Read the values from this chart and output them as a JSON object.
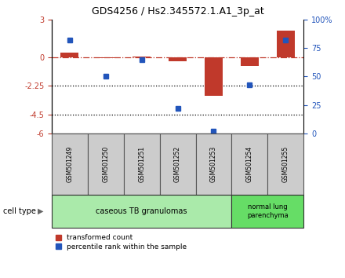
{
  "title": "GDS4256 / Hs2.345572.1.A1_3p_at",
  "samples": [
    "GSM501249",
    "GSM501250",
    "GSM501251",
    "GSM501252",
    "GSM501253",
    "GSM501254",
    "GSM501255"
  ],
  "red_values": [
    0.4,
    -0.05,
    0.08,
    -0.3,
    -3.0,
    -0.7,
    2.1
  ],
  "blue_values": [
    82,
    50,
    65,
    22,
    2,
    43,
    82
  ],
  "ylim_left": [
    -6,
    3
  ],
  "ylim_right": [
    0,
    100
  ],
  "yticks_left": [
    3,
    0,
    -2.25,
    -4.5,
    -6
  ],
  "yticks_right": [
    100,
    75,
    50,
    25,
    0
  ],
  "ytick_labels_left": [
    "3",
    "0",
    "-2.25",
    "-4.5",
    "-6"
  ],
  "ytick_labels_right": [
    "100%",
    "75",
    "50",
    "25",
    "0"
  ],
  "hlines_dotted": [
    -2.25,
    -4.5
  ],
  "hline_dashdot": 0,
  "group1_label": "caseous TB granulomas",
  "group2_label": "normal lung\nparenchyma",
  "group1_samples": [
    0,
    1,
    2,
    3,
    4
  ],
  "group2_samples": [
    5,
    6
  ],
  "cell_type_label": "cell type",
  "legend_red": "transformed count",
  "legend_blue": "percentile rank within the sample",
  "bar_width": 0.5,
  "red_color": "#c0392b",
  "blue_color": "#2255bb",
  "group1_bg": "#aaeaaa",
  "group2_bg": "#66dd66",
  "sample_bg": "#cccccc"
}
